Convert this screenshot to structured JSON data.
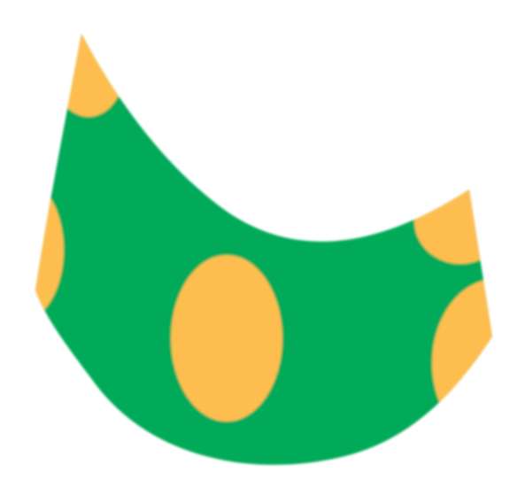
{
  "graphic": {
    "subject": "curved-spotted-shape-icon",
    "colors": {
      "background": "#ffffff",
      "body": "#06AA58",
      "spots": "#FDBE4F"
    }
  }
}
